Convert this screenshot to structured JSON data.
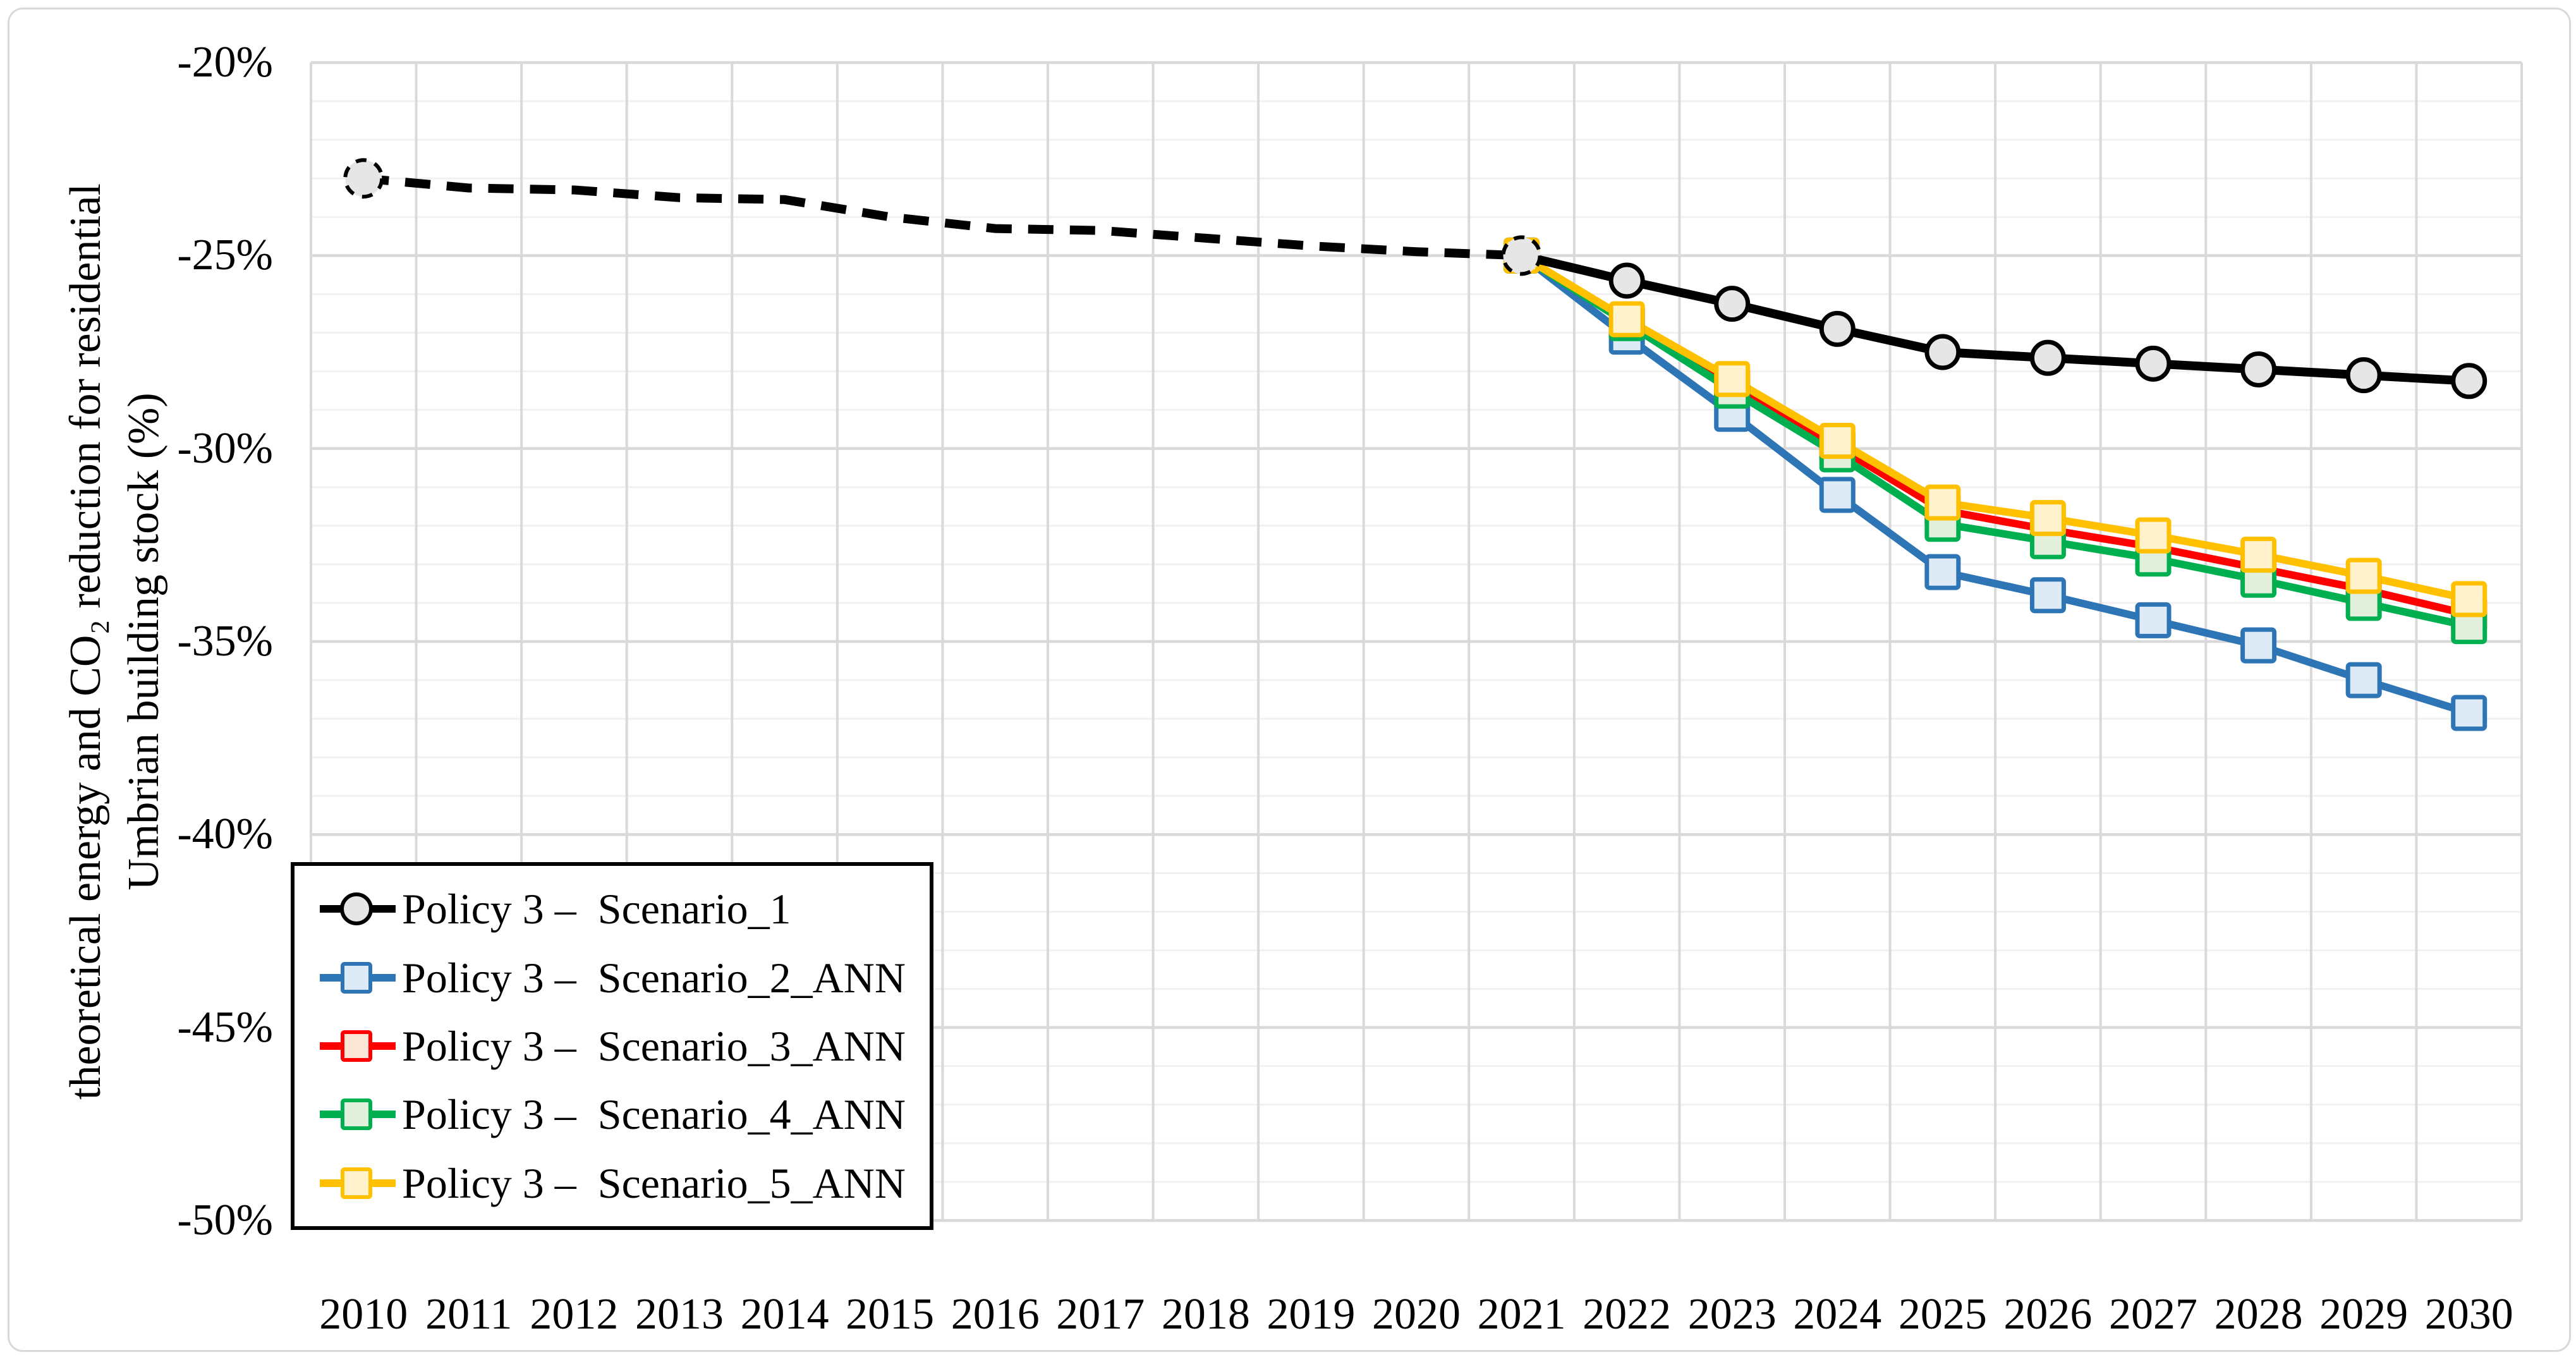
{
  "chart": {
    "y_axis_title_line1": "theoretical energy and CO₂ reduction for residential",
    "y_axis_title_line2": "Umbrian building stock (%)",
    "y_tick_labels": [
      "-20%",
      "-25%",
      "-30%",
      "-35%",
      "-40%",
      "-45%",
      "-50%"
    ],
    "x_tick_labels": [
      "2010",
      "2011",
      "2012",
      "2013",
      "2014",
      "2015",
      "2016",
      "2017",
      "2018",
      "2019",
      "2020",
      "2021",
      "2022",
      "2023",
      "2024",
      "2025",
      "2026",
      "2027",
      "2028",
      "2029",
      "2030"
    ]
  },
  "chart_data": {
    "type": "line",
    "title": "",
    "xlabel": "",
    "ylabel": "theoretical energy and CO₂ reduction for residential Umbrian building stock (%)",
    "x": [
      2010,
      2011,
      2012,
      2013,
      2014,
      2015,
      2016,
      2017,
      2018,
      2019,
      2020,
      2021,
      2022,
      2023,
      2024,
      2025,
      2026,
      2027,
      2028,
      2029,
      2030
    ],
    "ylim": [
      -50,
      -20
    ],
    "y_major_step": 5,
    "y_minor_step": 1,
    "grid": "on",
    "legend_position": "inside-bottom-left",
    "colors": {
      "major_grid": "#d9d9d9",
      "minor_grid": "#f1f1f1",
      "vertical_grid": "#d9d9d9",
      "frame_border": "#d9d9d9"
    },
    "series": [
      {
        "name": "Policy 3 –  Scenario_1",
        "color": "#000000",
        "marker": "circle",
        "marker_fill": "#e7e6e6",
        "line_style": "dashed until 2021, solid 2021-2030",
        "dashed_through_index": 11,
        "values": [
          -23.0,
          -23.25,
          -23.3,
          -23.5,
          -23.55,
          -24.0,
          -24.3,
          -24.35,
          -24.55,
          -24.75,
          -24.9,
          -25.0,
          -25.65,
          -26.25,
          -26.9,
          -27.5,
          -27.65,
          -27.8,
          -27.95,
          -28.1,
          -28.25
        ]
      },
      {
        "name": "Policy 3 –  Scenario_2_ANN",
        "color": "#2e75b6",
        "marker": "square",
        "marker_fill": "#deebf7",
        "line_style": "solid",
        "values": [
          null,
          null,
          null,
          null,
          null,
          null,
          null,
          null,
          null,
          null,
          null,
          -25.0,
          -27.1,
          -29.1,
          -31.2,
          -33.2,
          -33.8,
          -34.45,
          -35.1,
          -36.0,
          -36.85
        ]
      },
      {
        "name": "Policy 3 –  Scenario_3_ANN",
        "color": "#ff0000",
        "marker": "square",
        "marker_fill": "#fbe5d6",
        "line_style": "solid",
        "values": [
          null,
          null,
          null,
          null,
          null,
          null,
          null,
          null,
          null,
          null,
          null,
          -25.0,
          -26.7,
          -28.35,
          -29.95,
          -31.6,
          -32.1,
          -32.55,
          -33.1,
          -33.65,
          -34.3
        ]
      },
      {
        "name": "Policy 3 –  Scenario_4_ANN",
        "color": "#00b050",
        "marker": "square",
        "marker_fill": "#e2efda",
        "line_style": "solid",
        "values": [
          null,
          null,
          null,
          null,
          null,
          null,
          null,
          null,
          null,
          null,
          null,
          -25.0,
          -26.75,
          -28.5,
          -30.15,
          -31.95,
          -32.4,
          -32.85,
          -33.4,
          -34.0,
          -34.6
        ]
      },
      {
        "name": "Policy 3 –  Scenario_5_ANN",
        "color": "#ffc000",
        "marker": "square",
        "marker_fill": "#fff2cc",
        "line_style": "solid",
        "values": [
          null,
          null,
          null,
          null,
          null,
          null,
          null,
          null,
          null,
          null,
          null,
          -25.0,
          -26.65,
          -28.2,
          -29.8,
          -31.4,
          -31.8,
          -32.25,
          -32.75,
          -33.3,
          -33.9
        ]
      }
    ]
  }
}
